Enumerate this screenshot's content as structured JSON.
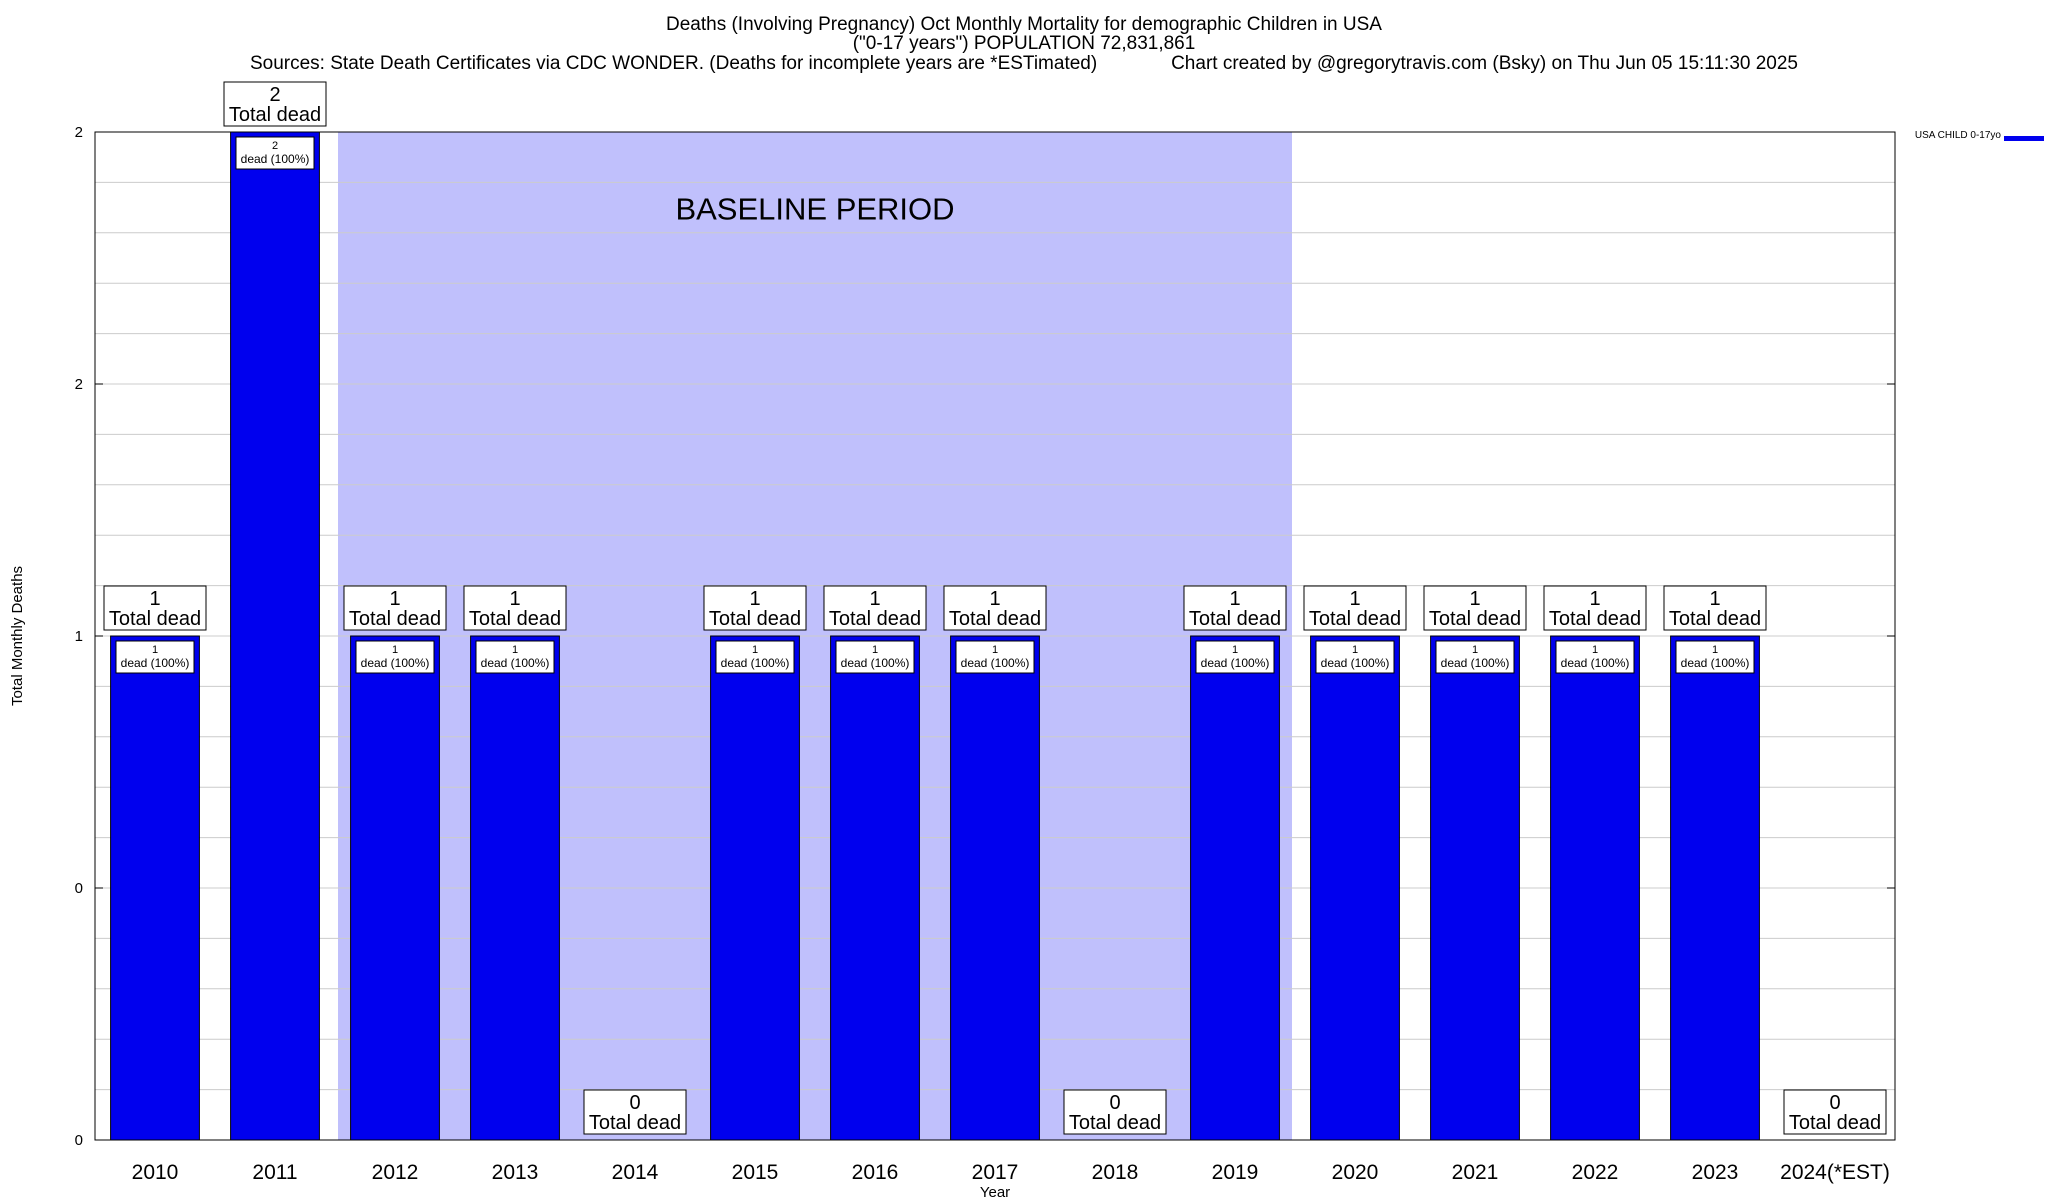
{
  "title_line1": "Deaths (Involving Pregnancy) Oct Monthly Mortality for demographic Children in USA",
  "title_line2": "(\"0-17 years\") POPULATION 72,831,861",
  "title_line3": "Sources: State Death Certificates via CDC WONDER. (Deaths for incomplete years are *ESTimated)              Chart created by @gregorytravis.com (Bsky) on Thu Jun 05 15:11:30 2025",
  "colors": {
    "bar": "#0000ee",
    "baseline_region": "#c0c0fc",
    "grid": "#cccccc"
  },
  "chart_data": {
    "type": "bar",
    "categories": [
      "2010",
      "2011",
      "2012",
      "2013",
      "2014",
      "2015",
      "2016",
      "2017",
      "2018",
      "2019",
      "2020",
      "2021",
      "2022",
      "2023",
      "2024(*EST)"
    ],
    "series": [
      {
        "name": "USA CHILD 0-17yo",
        "values": [
          1,
          2,
          1,
          1,
          0,
          1,
          1,
          1,
          0,
          1,
          1,
          1,
          1,
          1,
          0
        ]
      }
    ],
    "top_labels": [
      "1",
      "2",
      "1",
      "1",
      "0",
      "1",
      "1",
      "1",
      "0",
      "1",
      "1",
      "1",
      "1",
      "1",
      "0"
    ],
    "top_label_suffix": "Total dead",
    "inner_labels": [
      "1",
      "2",
      "1",
      "1",
      "",
      "1",
      "1",
      "1",
      "",
      "1",
      "1",
      "1",
      "1",
      "1",
      ""
    ],
    "inner_label_suffix": "dead (100%)",
    "xlabel": "Year",
    "ylabel": "Total Monthly Deaths",
    "ylim": [
      0,
      2
    ],
    "yticks": [
      0,
      0.5,
      1,
      1.5,
      2
    ],
    "ytick_labels": [
      "0",
      "0",
      "1",
      "2",
      "2"
    ],
    "grid": true,
    "legend_position": "top-right",
    "annotation": {
      "text": "BASELINE PERIOD",
      "region_from": "2012",
      "region_to": "2019"
    }
  }
}
